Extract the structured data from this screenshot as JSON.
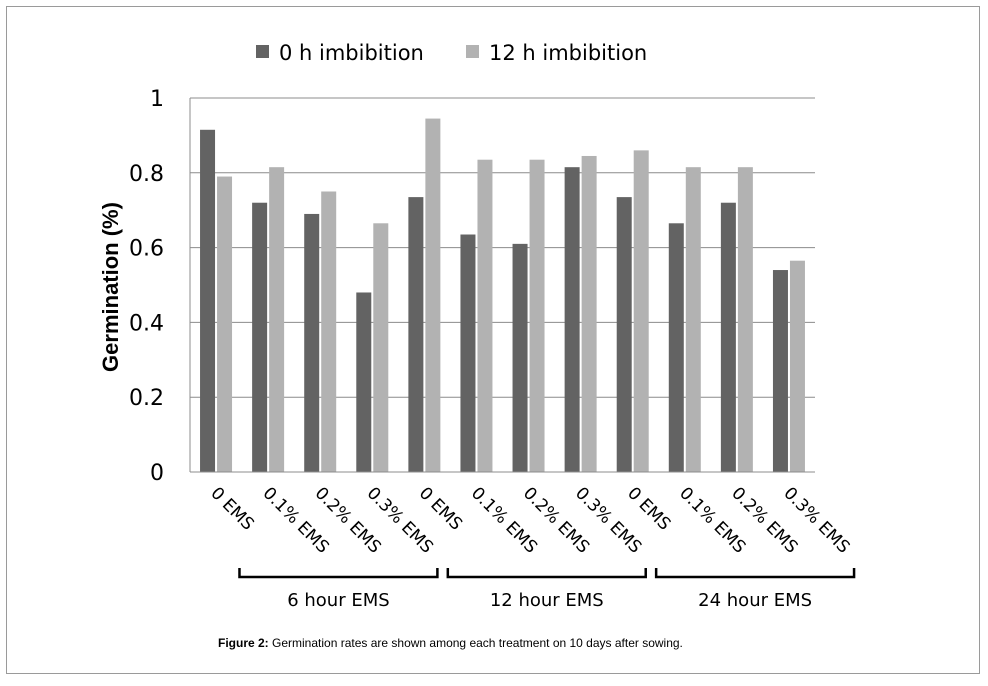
{
  "chart_data": {
    "type": "bar",
    "ylabel": "Germination (%)",
    "ylim": [
      0,
      1
    ],
    "yticks": [
      "0",
      "0.2",
      "0.4",
      "0.6",
      "0.8",
      "1"
    ],
    "categories": [
      "0 EMS",
      "0.1% EMS",
      "0.2% EMS",
      "0.3% EMS",
      "0 EMS",
      "0.1% EMS",
      "0.2% EMS",
      "0.3% EMS",
      "0 EMS",
      "0.1% EMS",
      "0.2% EMS",
      "0.3% EMS"
    ],
    "series": [
      {
        "name": "0 h imbibition",
        "color": "#636363",
        "values": [
          0.915,
          0.72,
          0.69,
          0.48,
          0.735,
          0.635,
          0.61,
          0.815,
          0.735,
          0.665,
          0.72,
          0.54
        ]
      },
      {
        "name": "12 h imbibition",
        "color": "#b2b2b2",
        "values": [
          0.79,
          0.815,
          0.75,
          0.665,
          0.945,
          0.835,
          0.835,
          0.845,
          0.86,
          0.815,
          0.815,
          0.565
        ]
      }
    ],
    "groups": [
      {
        "label": "6 hour EMS",
        "from": 0,
        "to": 3
      },
      {
        "label": "12 hour EMS",
        "from": 4,
        "to": 7
      },
      {
        "label": "24 hour EMS",
        "from": 8,
        "to": 11
      }
    ],
    "legend_position": "top",
    "grid": "horizontal"
  },
  "caption": {
    "label": "Figure 2:",
    "text": " Germination rates are shown among each treatment on 10 days after sowing."
  }
}
